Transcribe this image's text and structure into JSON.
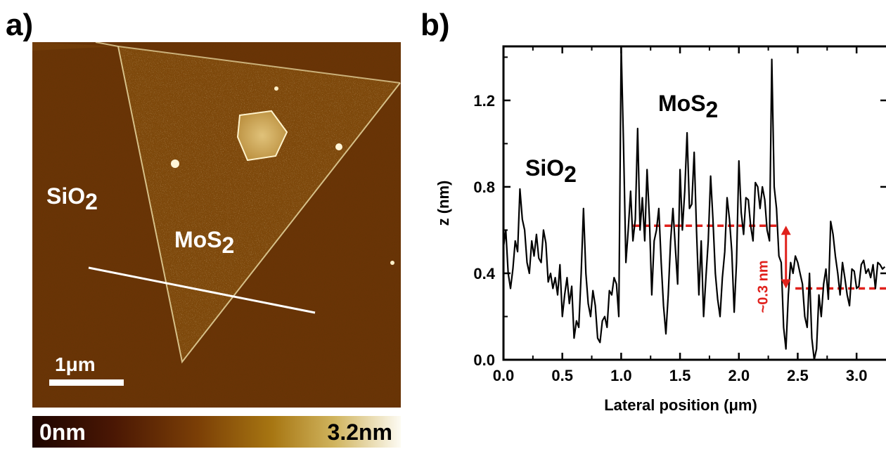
{
  "panel_a": {
    "label": "a)",
    "text_sio2": "SiO",
    "text_sio2_sub": "2",
    "text_mos2": "MoS",
    "text_mos2_sub": "2",
    "scalebar_label": "1μm",
    "colorbar": {
      "min_label": "0nm",
      "max_label": "3.2nm"
    },
    "colors": {
      "substrate": "#6e3208",
      "flake": "#8c4f10",
      "edge": "#e8d7a0",
      "particle": "#fff6d8"
    }
  },
  "panel_b": {
    "label": "b)",
    "text_sio2": "SiO",
    "text_sio2_sub": "2",
    "text_mos2": "MoS",
    "text_mos2_sub": "2",
    "step_annotation": "~0.3 nm",
    "annotation_color": "#e0211c"
  },
  "chart_data": {
    "type": "line",
    "xlabel": "Lateral position (μm)",
    "ylabel": "z (nm)",
    "xlim": [
      0,
      3.25
    ],
    "ylim": [
      0,
      1.45
    ],
    "xticks": [
      0.0,
      0.5,
      1.0,
      1.5,
      2.0,
      2.5,
      3.0
    ],
    "xtick_labels": [
      "0.0",
      "0.5",
      "1.0",
      "1.5",
      "2.0",
      "2.5",
      "3.0"
    ],
    "yticks": [
      0.0,
      0.4,
      0.8,
      1.2
    ],
    "ytick_labels": [
      "0.0",
      "0.4",
      "0.8",
      "1.2"
    ],
    "grid": false,
    "series": [
      {
        "color": "#000000",
        "x": [
          0.0,
          0.02,
          0.04,
          0.06,
          0.08,
          0.1,
          0.12,
          0.14,
          0.16,
          0.18,
          0.2,
          0.22,
          0.24,
          0.26,
          0.28,
          0.3,
          0.32,
          0.34,
          0.36,
          0.38,
          0.4,
          0.42,
          0.44,
          0.46,
          0.48,
          0.5,
          0.52,
          0.54,
          0.56,
          0.58,
          0.6,
          0.62,
          0.64,
          0.66,
          0.68,
          0.7,
          0.72,
          0.74,
          0.76,
          0.78,
          0.8,
          0.82,
          0.84,
          0.86,
          0.88,
          0.9,
          0.92,
          0.94,
          0.96,
          0.98,
          1.0,
          1.02,
          1.04,
          1.06,
          1.08,
          1.1,
          1.12,
          1.14,
          1.16,
          1.18,
          1.2,
          1.22,
          1.24,
          1.26,
          1.28,
          1.3,
          1.32,
          1.34,
          1.36,
          1.38,
          1.4,
          1.42,
          1.44,
          1.46,
          1.48,
          1.5,
          1.52,
          1.54,
          1.56,
          1.58,
          1.6,
          1.62,
          1.64,
          1.66,
          1.68,
          1.7,
          1.72,
          1.74,
          1.76,
          1.78,
          1.8,
          1.82,
          1.84,
          1.86,
          1.88,
          1.9,
          1.92,
          1.94,
          1.96,
          1.98,
          2.0,
          2.02,
          2.04,
          2.06,
          2.08,
          2.1,
          2.12,
          2.14,
          2.16,
          2.18,
          2.2,
          2.22,
          2.24,
          2.26,
          2.28,
          2.3,
          2.32,
          2.34,
          2.36,
          2.38,
          2.4,
          2.42,
          2.44,
          2.46,
          2.48,
          2.5,
          2.52,
          2.54,
          2.56,
          2.58,
          2.6,
          2.62,
          2.64,
          2.66,
          2.68,
          2.7,
          2.72,
          2.74,
          2.76,
          2.78,
          2.8,
          2.82,
          2.84,
          2.86,
          2.88,
          2.9,
          2.92,
          2.94,
          2.96,
          2.98,
          3.0,
          3.02,
          3.04,
          3.06,
          3.08,
          3.1,
          3.12,
          3.14,
          3.16,
          3.18,
          3.2,
          3.22,
          3.24
        ],
        "y": [
          0.52,
          0.6,
          0.4,
          0.33,
          0.42,
          0.55,
          0.5,
          0.79,
          0.65,
          0.6,
          0.45,
          0.4,
          0.55,
          0.48,
          0.58,
          0.47,
          0.45,
          0.6,
          0.54,
          0.36,
          0.4,
          0.33,
          0.38,
          0.3,
          0.44,
          0.2,
          0.3,
          0.38,
          0.26,
          0.34,
          0.1,
          0.18,
          0.15,
          0.4,
          0.7,
          0.4,
          0.26,
          0.2,
          0.32,
          0.25,
          0.1,
          0.08,
          0.18,
          0.2,
          0.15,
          0.32,
          0.3,
          0.38,
          0.35,
          0.2,
          1.45,
          1.0,
          0.45,
          0.6,
          0.78,
          0.55,
          0.65,
          1.07,
          0.6,
          0.75,
          0.55,
          0.88,
          0.65,
          0.3,
          0.55,
          0.6,
          0.7,
          0.45,
          0.25,
          0.12,
          0.3,
          0.55,
          0.7,
          0.52,
          0.35,
          0.88,
          0.6,
          0.78,
          1.05,
          0.7,
          0.72,
          0.96,
          0.6,
          0.3,
          0.55,
          0.2,
          0.38,
          0.55,
          0.85,
          0.65,
          0.4,
          0.28,
          0.2,
          0.38,
          0.5,
          0.75,
          0.65,
          0.5,
          0.22,
          0.45,
          0.92,
          0.68,
          0.58,
          0.75,
          0.74,
          0.62,
          0.55,
          0.82,
          0.8,
          0.7,
          0.8,
          0.74,
          0.6,
          0.55,
          1.39,
          0.8,
          0.7,
          0.48,
          0.45,
          0.15,
          0.05,
          0.3,
          0.45,
          0.4,
          0.48,
          0.45,
          0.4,
          0.35,
          0.2,
          0.15,
          0.4,
          0.1,
          0.0,
          0.05,
          0.3,
          0.2,
          0.35,
          0.42,
          0.28,
          0.64,
          0.58,
          0.48,
          0.4,
          0.3,
          0.45,
          0.38,
          0.3,
          0.25,
          0.42,
          0.41,
          0.33,
          0.34,
          0.44,
          0.46,
          0.4,
          0.42,
          0.38,
          0.44,
          0.33,
          0.45,
          0.44,
          0.42,
          0.43
        ]
      }
    ],
    "reference_lines": [
      {
        "x0": 1.1,
        "x1": 2.33,
        "y": 0.62,
        "color": "#e0211c",
        "style": "dashed"
      },
      {
        "x0": 2.48,
        "x1": 3.25,
        "y": 0.33,
        "color": "#e0211c",
        "style": "dashed"
      }
    ],
    "step_arrow": {
      "x": 2.4,
      "y0": 0.33,
      "y1": 0.62,
      "color": "#e0211c"
    }
  }
}
